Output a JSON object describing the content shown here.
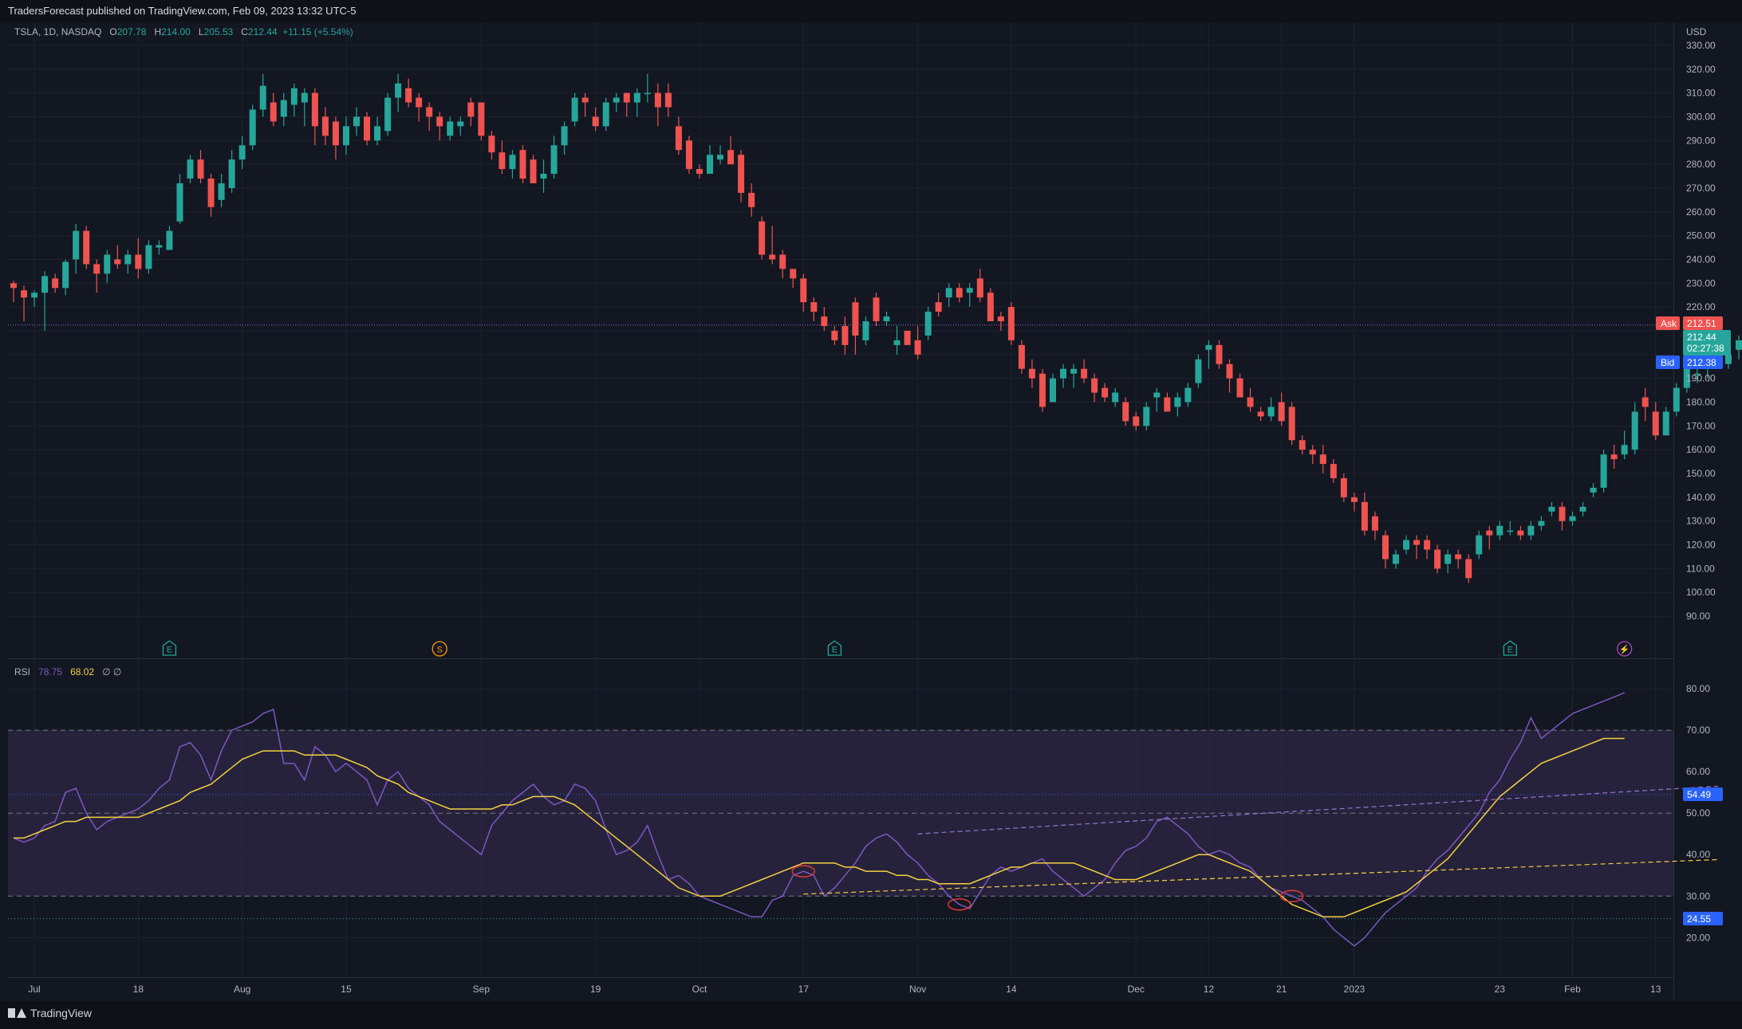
{
  "header": {
    "publisher_line": "TradersForecast published on TradingView.com, Feb 09, 2023 13:32 UTC-5"
  },
  "footer": {
    "brand": "TradingView"
  },
  "symbol": {
    "name": "TSLA, 1D, NASDAQ",
    "o_label": "O",
    "o": "207.78",
    "h_label": "H",
    "h": "214.00",
    "l_label": "L",
    "l": "205.53",
    "c_label": "C",
    "c": "212.44",
    "change": "+11.15 (+5.54%)"
  },
  "rsi_legend": {
    "name": "RSI",
    "value": "78.75",
    "ma": "68.02",
    "extra": "∅ ∅"
  },
  "currency": "USD",
  "price_tags": {
    "ask_label": "Ask",
    "ask": "212.51",
    "last": "212.44",
    "countdown": "02:27:38",
    "bid_label": "Bid",
    "bid": "212.38"
  },
  "rsi_tags": {
    "upper": "54.49",
    "lower": "24.55"
  },
  "event_markers": [
    {
      "letter": "E",
      "type": "earnings",
      "i": 15
    },
    {
      "letter": "S",
      "type": "split",
      "i": 41
    },
    {
      "letter": "E",
      "type": "earnings",
      "i": 79
    },
    {
      "letter": "E",
      "type": "earnings",
      "i": 144
    },
    {
      "letter": "⚡",
      "type": "news",
      "i": 155
    }
  ],
  "colors": {
    "up": "#26a69a",
    "down": "#ef5350",
    "rsi": "#7e57c2",
    "rsi_ma": "#f5d142",
    "bg": "#131722",
    "grid": "#1e222d",
    "band": "#2a2440"
  },
  "chart_data": {
    "type": "candlestick",
    "title": "TSLA, 1D, NASDAQ",
    "price_axis": {
      "min": 85,
      "max": 335,
      "ticks": [
        90,
        100,
        110,
        120,
        130,
        140,
        150,
        160,
        170,
        180,
        190,
        200,
        210,
        220,
        230,
        240,
        250,
        260,
        270,
        280,
        290,
        300,
        310,
        320,
        330
      ]
    },
    "time_axis_labels": [
      {
        "label": "Jul",
        "i": 2
      },
      {
        "label": "18",
        "i": 12
      },
      {
        "label": "Aug",
        "i": 22
      },
      {
        "label": "15",
        "i": 32
      },
      {
        "label": "Sep",
        "i": 45
      },
      {
        "label": "19",
        "i": 56
      },
      {
        "label": "Oct",
        "i": 66
      },
      {
        "label": "17",
        "i": 76
      },
      {
        "label": "Nov",
        "i": 87
      },
      {
        "label": "14",
        "i": 96
      },
      {
        "label": "Dec",
        "i": 108
      },
      {
        "label": "12",
        "i": 115
      },
      {
        "label": "21",
        "i": 122
      },
      {
        "label": "2023",
        "i": 129
      },
      {
        "label": "23",
        "i": 143
      },
      {
        "label": "Feb",
        "i": 150
      },
      {
        "label": "13",
        "i": 158
      }
    ],
    "last_price_line": 212.44,
    "candles": [
      [
        230,
        228,
        231,
        222
      ],
      [
        227,
        224,
        229,
        214
      ],
      [
        224,
        226,
        227,
        220
      ],
      [
        226,
        233,
        235,
        210
      ],
      [
        232,
        228,
        234,
        226
      ],
      [
        228,
        239,
        240,
        225
      ],
      [
        240,
        252,
        255,
        234
      ],
      [
        252,
        238,
        254,
        236
      ],
      [
        238,
        234,
        240,
        226
      ],
      [
        234,
        242,
        244,
        230
      ],
      [
        240,
        238,
        246,
        236
      ],
      [
        238,
        242,
        244,
        234
      ],
      [
        242,
        236,
        249,
        232
      ],
      [
        236,
        246,
        248,
        234
      ],
      [
        245,
        246,
        248,
        242
      ],
      [
        244,
        252,
        254,
        244
      ],
      [
        256,
        272,
        276,
        255
      ],
      [
        274,
        282,
        284,
        272
      ],
      [
        282,
        274,
        286,
        272
      ],
      [
        274,
        262,
        276,
        258
      ],
      [
        265,
        272,
        276,
        262
      ],
      [
        270,
        282,
        286,
        268
      ],
      [
        282,
        288,
        292,
        278
      ],
      [
        288,
        303,
        305,
        286
      ],
      [
        303,
        313,
        318,
        300
      ],
      [
        306,
        298,
        310,
        296
      ],
      [
        300,
        307,
        310,
        296
      ],
      [
        305,
        312,
        314,
        300
      ],
      [
        306,
        310,
        312,
        296
      ],
      [
        310,
        296,
        312,
        288
      ],
      [
        300,
        292,
        304,
        288
      ],
      [
        298,
        288,
        300,
        282
      ],
      [
        288,
        296,
        300,
        284
      ],
      [
        296,
        300,
        304,
        292
      ],
      [
        300,
        290,
        302,
        288
      ],
      [
        290,
        296,
        300,
        288
      ],
      [
        294,
        308,
        310,
        292
      ],
      [
        308,
        314,
        318,
        302
      ],
      [
        312,
        306,
        316,
        304
      ],
      [
        308,
        304,
        310,
        298
      ],
      [
        304,
        300,
        306,
        294
      ],
      [
        300,
        296,
        302,
        290
      ],
      [
        292,
        298,
        300,
        290
      ],
      [
        296,
        298,
        300,
        292
      ],
      [
        306,
        300,
        308,
        296
      ],
      [
        306,
        292,
        306,
        290
      ],
      [
        292,
        285,
        294,
        282
      ],
      [
        285,
        278,
        290,
        276
      ],
      [
        278,
        284,
        286,
        274
      ],
      [
        286,
        274,
        288,
        272
      ],
      [
        282,
        272,
        284,
        272
      ],
      [
        274,
        276,
        282,
        268
      ],
      [
        276,
        288,
        292,
        274
      ],
      [
        288,
        296,
        298,
        284
      ],
      [
        298,
        308,
        310,
        296
      ],
      [
        308,
        306,
        310,
        300
      ],
      [
        300,
        296,
        304,
        294
      ],
      [
        296,
        306,
        308,
        294
      ],
      [
        306,
        308,
        310,
        302
      ],
      [
        310,
        306,
        310,
        300
      ],
      [
        306,
        310,
        312,
        300
      ],
      [
        310,
        310,
        318,
        306
      ],
      [
        310,
        304,
        314,
        296
      ],
      [
        310,
        304,
        314,
        300
      ],
      [
        296,
        286,
        300,
        284
      ],
      [
        290,
        278,
        292,
        276
      ],
      [
        278,
        276,
        280,
        274
      ],
      [
        276,
        284,
        288,
        276
      ],
      [
        282,
        284,
        288,
        280
      ],
      [
        286,
        280,
        292,
        280
      ],
      [
        284,
        268,
        286,
        264
      ],
      [
        268,
        262,
        272,
        258
      ],
      [
        256,
        242,
        258,
        240
      ],
      [
        242,
        240,
        254,
        238
      ],
      [
        242,
        236,
        244,
        232
      ],
      [
        236,
        232,
        236,
        228
      ],
      [
        232,
        222,
        234,
        218
      ],
      [
        222,
        218,
        224,
        214
      ],
      [
        216,
        212,
        220,
        210
      ],
      [
        210,
        206,
        212,
        204
      ],
      [
        212,
        204,
        216,
        200
      ],
      [
        222,
        208,
        224,
        200
      ],
      [
        206,
        214,
        216,
        204
      ],
      [
        224,
        214,
        226,
        212
      ],
      [
        214,
        216,
        218,
        212
      ],
      [
        204,
        206,
        212,
        200
      ],
      [
        210,
        204,
        208,
        206
      ],
      [
        206,
        200,
        212,
        198
      ],
      [
        208,
        218,
        220,
        206
      ],
      [
        222,
        218,
        226,
        216
      ],
      [
        224,
        228,
        230,
        220
      ],
      [
        228,
        224,
        230,
        222
      ],
      [
        226,
        228,
        230,
        220
      ],
      [
        232,
        224,
        236,
        222
      ],
      [
        226,
        214,
        228,
        214
      ],
      [
        216,
        214,
        218,
        210
      ],
      [
        220,
        206,
        222,
        204
      ],
      [
        204,
        194,
        206,
        192
      ],
      [
        194,
        190,
        198,
        186
      ],
      [
        192,
        178,
        194,
        176
      ],
      [
        180,
        190,
        192,
        180
      ],
      [
        190,
        194,
        196,
        186
      ],
      [
        192,
        194,
        196,
        186
      ],
      [
        194,
        190,
        198,
        188
      ],
      [
        190,
        184,
        192,
        180
      ],
      [
        186,
        182,
        188,
        180
      ],
      [
        180,
        184,
        186,
        178
      ],
      [
        180,
        172,
        182,
        170
      ],
      [
        174,
        170,
        176,
        168
      ],
      [
        170,
        178,
        180,
        168
      ],
      [
        182,
        184,
        186,
        176
      ],
      [
        182,
        176,
        184,
        176
      ],
      [
        178,
        182,
        184,
        174
      ],
      [
        180,
        186,
        188,
        178
      ],
      [
        188,
        198,
        200,
        186
      ],
      [
        202,
        204,
        206,
        194
      ],
      [
        204,
        196,
        206,
        194
      ],
      [
        196,
        190,
        198,
        184
      ],
      [
        190,
        182,
        192,
        182
      ],
      [
        182,
        178,
        186,
        176
      ],
      [
        176,
        174,
        178,
        172
      ],
      [
        174,
        178,
        182,
        172
      ],
      [
        180,
        172,
        184,
        170
      ],
      [
        178,
        164,
        180,
        162
      ],
      [
        164,
        160,
        166,
        158
      ],
      [
        160,
        158,
        162,
        154
      ],
      [
        158,
        154,
        162,
        150
      ],
      [
        154,
        148,
        156,
        146
      ],
      [
        148,
        140,
        150,
        138
      ],
      [
        140,
        138,
        142,
        134
      ],
      [
        138,
        126,
        142,
        124
      ],
      [
        132,
        126,
        134,
        122
      ],
      [
        124,
        114,
        126,
        110
      ],
      [
        112,
        116,
        118,
        110
      ],
      [
        118,
        122,
        124,
        116
      ],
      [
        122,
        120,
        124,
        114
      ],
      [
        122,
        118,
        124,
        114
      ],
      [
        118,
        110,
        120,
        108
      ],
      [
        112,
        116,
        118,
        108
      ],
      [
        116,
        114,
        118,
        110
      ],
      [
        114,
        106,
        116,
        104
      ],
      [
        116,
        124,
        126,
        114
      ],
      [
        126,
        124,
        128,
        118
      ],
      [
        124,
        128,
        130,
        122
      ],
      [
        126,
        126,
        130,
        124
      ],
      [
        126,
        124,
        128,
        122
      ],
      [
        124,
        128,
        130,
        122
      ],
      [
        128,
        130,
        132,
        126
      ],
      [
        134,
        136,
        138,
        132
      ],
      [
        136,
        130,
        138,
        126
      ],
      [
        130,
        132,
        134,
        128
      ],
      [
        134,
        136,
        138,
        132
      ],
      [
        142,
        144,
        146,
        140
      ],
      [
        144,
        158,
        160,
        142
      ],
      [
        158,
        156,
        162,
        152
      ],
      [
        158,
        162,
        168,
        156
      ],
      [
        160,
        176,
        180,
        158
      ],
      [
        182,
        178,
        186,
        172
      ],
      [
        176,
        166,
        180,
        164
      ],
      [
        166,
        176,
        178,
        166
      ],
      [
        176,
        186,
        188,
        174
      ],
      [
        186,
        196,
        198,
        184
      ],
      [
        192,
        192,
        198,
        188
      ],
      [
        196,
        200,
        202,
        190
      ],
      [
        200,
        198,
        202,
        196
      ],
      [
        196,
        200,
        204,
        194
      ],
      [
        202,
        206,
        208,
        198
      ],
      [
        206,
        212,
        214,
        205
      ]
    ],
    "rsi": {
      "axis": {
        "min": 12,
        "max": 85,
        "ticks": [
          20,
          30,
          40,
          50,
          60,
          70,
          80
        ]
      },
      "bands": {
        "upper": 70,
        "middle": 50,
        "lower": 30
      },
      "levels": {
        "upper_dotted": 54.49,
        "lower_dotted": 24.55
      },
      "rsi_values": [
        44,
        43,
        44,
        47,
        48,
        55,
        56,
        50,
        46,
        48,
        49,
        50,
        51,
        53,
        56,
        58,
        66,
        67,
        64,
        58,
        65,
        70,
        71,
        72,
        74,
        75,
        62,
        62,
        58,
        66,
        64,
        60,
        62,
        60,
        58,
        52,
        58,
        60,
        56,
        54,
        52,
        48,
        46,
        44,
        42,
        40,
        47,
        50,
        53,
        55,
        57,
        54,
        52,
        53,
        57,
        56,
        53,
        46,
        40,
        41,
        43,
        47,
        40,
        34,
        35,
        33,
        30,
        29,
        28,
        27,
        26,
        25,
        25,
        29,
        30,
        35,
        36,
        35,
        30,
        32,
        35,
        38,
        42,
        44,
        45,
        43,
        40,
        38,
        35,
        33,
        30,
        28,
        27,
        31,
        35,
        37,
        36,
        37,
        38,
        39,
        36,
        34,
        32,
        30,
        32,
        34,
        38,
        41,
        42,
        44,
        48,
        49,
        47,
        45,
        42,
        40,
        41,
        40,
        38,
        37,
        34,
        32,
        31,
        30,
        29,
        27,
        25,
        22,
        20,
        18,
        20,
        23,
        26,
        28,
        30,
        32,
        36,
        39,
        41,
        44,
        47,
        50,
        55,
        58,
        63,
        67,
        73,
        68,
        70,
        72,
        74,
        75,
        76,
        77,
        78,
        79
      ],
      "ma_values": [
        44,
        44,
        45,
        46,
        47,
        48,
        48,
        49,
        49,
        49,
        49,
        49,
        49,
        50,
        51,
        52,
        53,
        55,
        56,
        57,
        59,
        61,
        63,
        64,
        65,
        65,
        65,
        65,
        64,
        64,
        64,
        64,
        63,
        62,
        61,
        59,
        58,
        57,
        55,
        54,
        53,
        52,
        51,
        51,
        51,
        51,
        51,
        52,
        52,
        53,
        54,
        54,
        54,
        53,
        52,
        50,
        48,
        46,
        44,
        42,
        40,
        38,
        36,
        34,
        32,
        31,
        30,
        30,
        30,
        31,
        32,
        33,
        34,
        35,
        36,
        37,
        38,
        38,
        38,
        38,
        37,
        37,
        36,
        36,
        36,
        35,
        35,
        34,
        34,
        33,
        33,
        33,
        33,
        34,
        35,
        36,
        37,
        37,
        38,
        38,
        38,
        38,
        38,
        37,
        36,
        35,
        34,
        34,
        34,
        35,
        36,
        37,
        38,
        39,
        40,
        40,
        39,
        38,
        37,
        36,
        34,
        32,
        30,
        28,
        27,
        26,
        25,
        25,
        25,
        26,
        27,
        28,
        29,
        30,
        31,
        33,
        35,
        37,
        39,
        42,
        45,
        48,
        51,
        54,
        56,
        58,
        60,
        62,
        63,
        64,
        65,
        66,
        67,
        68,
        68,
        68
      ],
      "trendlines": [
        {
          "from_i": 87,
          "from_v": 45.0,
          "to_i": 164,
          "to_v": 56.5,
          "color": "purple"
        },
        {
          "from_i": 76,
          "from_v": 30.5,
          "to_i": 164,
          "to_v": 38.8,
          "color": "yellow"
        }
      ],
      "circled_lows": [
        76,
        91,
        123
      ]
    }
  }
}
